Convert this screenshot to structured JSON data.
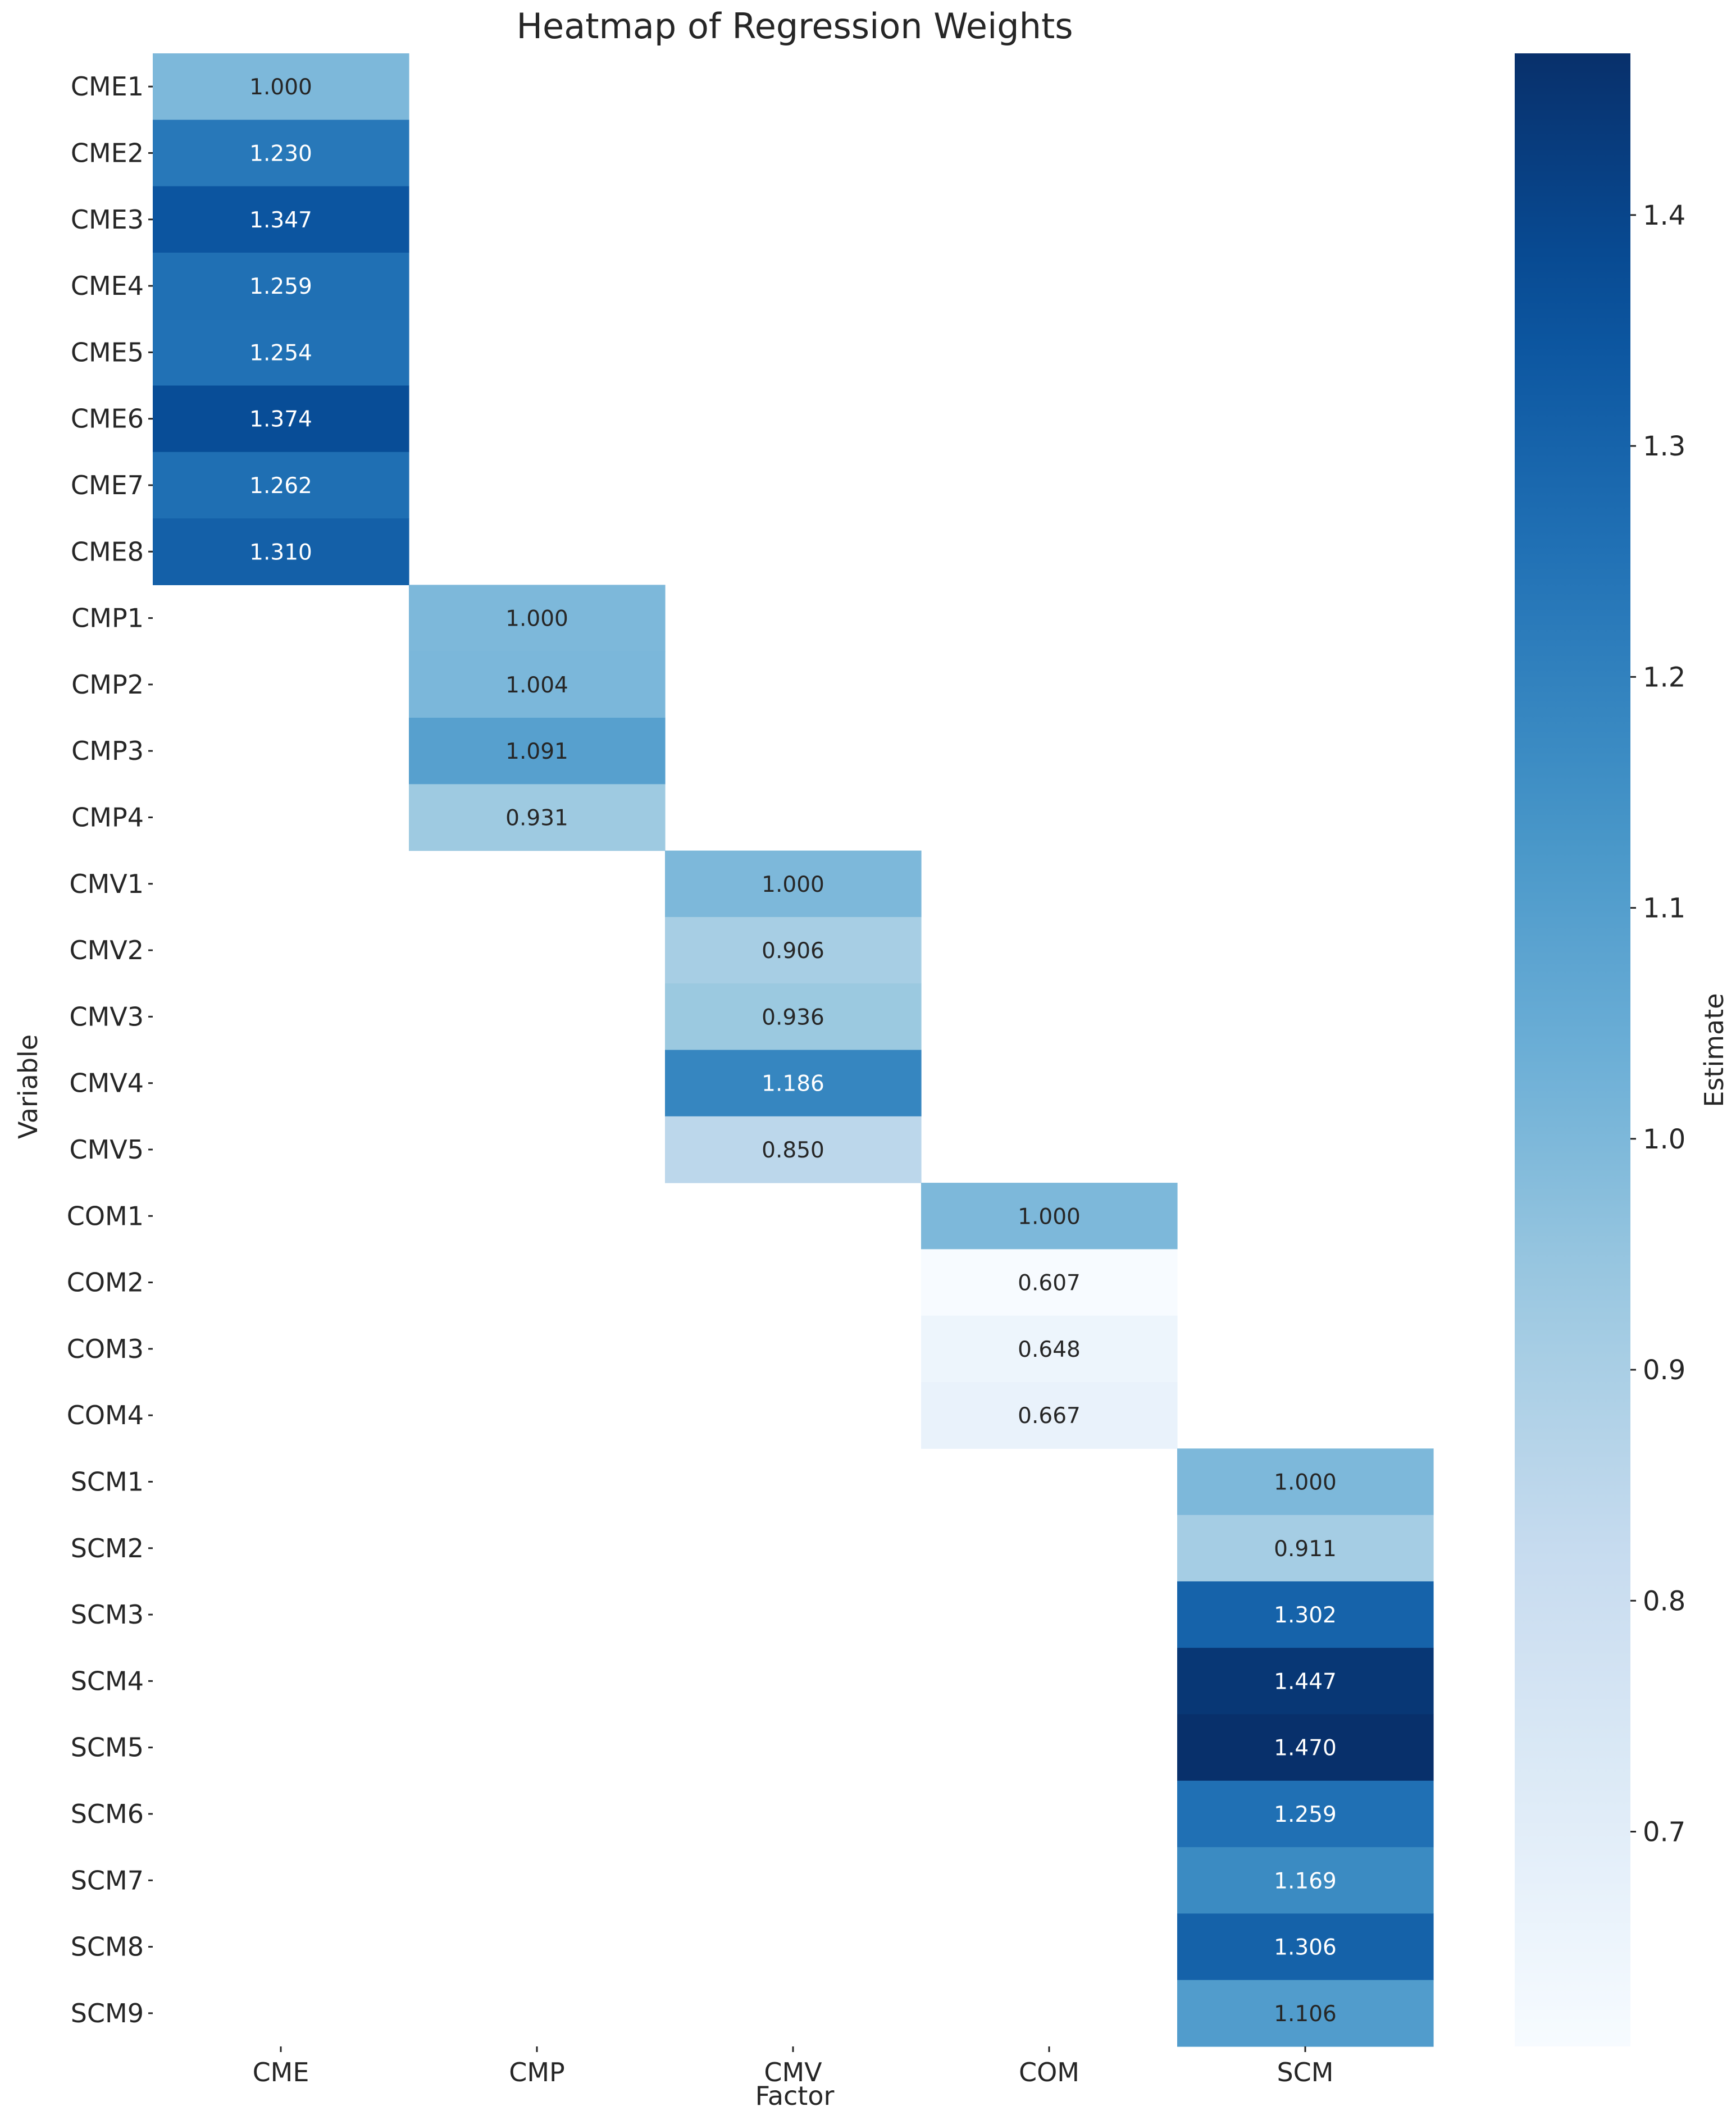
{
  "chart_data": {
    "type": "heatmap",
    "title": "Heatmap of Regression Weights",
    "xlabel": "Factor",
    "ylabel": "Variable",
    "colorbar_label": "Estimate",
    "colormap": "Blues",
    "vmin": 0.607,
    "vmax": 1.47,
    "colorbar_ticks": [
      "0.7",
      "0.8",
      "0.9",
      "1.0",
      "1.1",
      "1.2",
      "1.3",
      "1.4"
    ],
    "columns": [
      "CME",
      "CMP",
      "CMV",
      "COM",
      "SCM"
    ],
    "rows": [
      {
        "variable": "CME1",
        "factor": "CME",
        "value": 1.0,
        "label": "1.000"
      },
      {
        "variable": "CME2",
        "factor": "CME",
        "value": 1.23,
        "label": "1.230"
      },
      {
        "variable": "CME3",
        "factor": "CME",
        "value": 1.347,
        "label": "1.347"
      },
      {
        "variable": "CME4",
        "factor": "CME",
        "value": 1.259,
        "label": "1.259"
      },
      {
        "variable": "CME5",
        "factor": "CME",
        "value": 1.254,
        "label": "1.254"
      },
      {
        "variable": "CME6",
        "factor": "CME",
        "value": 1.374,
        "label": "1.374"
      },
      {
        "variable": "CME7",
        "factor": "CME",
        "value": 1.262,
        "label": "1.262"
      },
      {
        "variable": "CME8",
        "factor": "CME",
        "value": 1.31,
        "label": "1.310"
      },
      {
        "variable": "CMP1",
        "factor": "CMP",
        "value": 1.0,
        "label": "1.000"
      },
      {
        "variable": "CMP2",
        "factor": "CMP",
        "value": 1.004,
        "label": "1.004"
      },
      {
        "variable": "CMP3",
        "factor": "CMP",
        "value": 1.091,
        "label": "1.091"
      },
      {
        "variable": "CMP4",
        "factor": "CMP",
        "value": 0.931,
        "label": "0.931"
      },
      {
        "variable": "CMV1",
        "factor": "CMV",
        "value": 1.0,
        "label": "1.000"
      },
      {
        "variable": "CMV2",
        "factor": "CMV",
        "value": 0.906,
        "label": "0.906"
      },
      {
        "variable": "CMV3",
        "factor": "CMV",
        "value": 0.936,
        "label": "0.936"
      },
      {
        "variable": "CMV4",
        "factor": "CMV",
        "value": 1.186,
        "label": "1.186"
      },
      {
        "variable": "CMV5",
        "factor": "CMV",
        "value": 0.85,
        "label": "0.850"
      },
      {
        "variable": "COM1",
        "factor": "COM",
        "value": 1.0,
        "label": "1.000"
      },
      {
        "variable": "COM2",
        "factor": "COM",
        "value": 0.607,
        "label": "0.607"
      },
      {
        "variable": "COM3",
        "factor": "COM",
        "value": 0.648,
        "label": "0.648"
      },
      {
        "variable": "COM4",
        "factor": "COM",
        "value": 0.667,
        "label": "0.667"
      },
      {
        "variable": "SCM1",
        "factor": "SCM",
        "value": 1.0,
        "label": "1.000"
      },
      {
        "variable": "SCM2",
        "factor": "SCM",
        "value": 0.911,
        "label": "0.911"
      },
      {
        "variable": "SCM3",
        "factor": "SCM",
        "value": 1.302,
        "label": "1.302"
      },
      {
        "variable": "SCM4",
        "factor": "SCM",
        "value": 1.447,
        "label": "1.447"
      },
      {
        "variable": "SCM5",
        "factor": "SCM",
        "value": 1.47,
        "label": "1.470"
      },
      {
        "variable": "SCM6",
        "factor": "SCM",
        "value": 1.259,
        "label": "1.259"
      },
      {
        "variable": "SCM7",
        "factor": "SCM",
        "value": 1.169,
        "label": "1.169"
      },
      {
        "variable": "SCM8",
        "factor": "SCM",
        "value": 1.306,
        "label": "1.306"
      },
      {
        "variable": "SCM9",
        "factor": "SCM",
        "value": 1.106,
        "label": "1.106"
      }
    ]
  }
}
